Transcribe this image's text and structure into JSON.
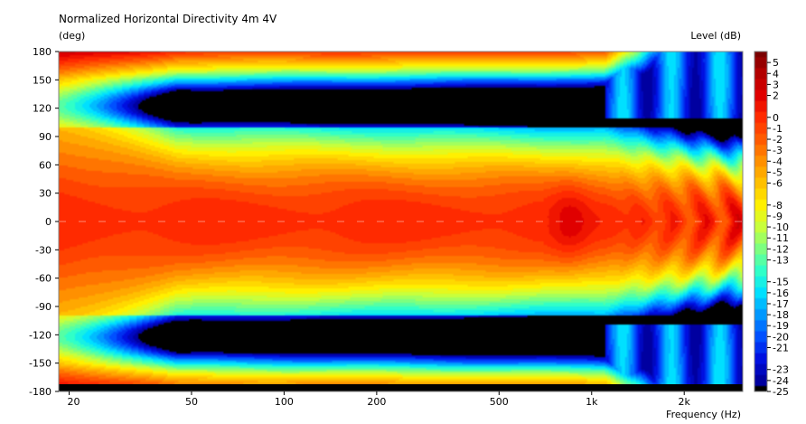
{
  "chart_data": {
    "type": "heatmap",
    "title": "Normalized Horizontal Directivity 4m 4V",
    "ylabel": "(deg)",
    "xlabel": "Frequency  (Hz)",
    "colorbar_label": "Level  (dB)",
    "x_scale": "log",
    "xlim": [
      18.5,
      3100
    ],
    "ylim": [
      -180,
      180
    ],
    "x_ticks": [
      {
        "value": 20,
        "label": "20"
      },
      {
        "value": 50,
        "label": "50"
      },
      {
        "value": 100,
        "label": "100"
      },
      {
        "value": 200,
        "label": "200"
      },
      {
        "value": 500,
        "label": "500"
      },
      {
        "value": 1000,
        "label": "1k"
      },
      {
        "value": 2000,
        "label": "2k"
      }
    ],
    "y_ticks": [
      180,
      150,
      120,
      90,
      60,
      30,
      0,
      -30,
      -60,
      -90,
      -120,
      -150,
      -180
    ],
    "colorbar": {
      "range": [
        -25,
        6
      ],
      "ticks": [
        5,
        4,
        3,
        2,
        0,
        -1,
        -2,
        -3,
        -4,
        -5,
        -6,
        -8,
        -9,
        -10,
        -11,
        -12,
        -13,
        -15,
        -16,
        -17,
        -18,
        -19,
        -20,
        -21,
        -23,
        -24,
        -25
      ],
      "colors": [
        {
          "level": 6,
          "color": "#7a0000"
        },
        {
          "level": 4,
          "color": "#b20000"
        },
        {
          "level": 2,
          "color": "#e00000"
        },
        {
          "level": 0,
          "color": "#ff2a00"
        },
        {
          "level": -2,
          "color": "#ff5a00"
        },
        {
          "level": -4,
          "color": "#ff9000"
        },
        {
          "level": -6,
          "color": "#ffc000"
        },
        {
          "level": -8,
          "color": "#fff000"
        },
        {
          "level": -10,
          "color": "#c8ff3c"
        },
        {
          "level": -12,
          "color": "#7cff80"
        },
        {
          "level": -14,
          "color": "#30ffc8"
        },
        {
          "level": -16,
          "color": "#00e0ff"
        },
        {
          "level": -18,
          "color": "#0098ff"
        },
        {
          "level": -20,
          "color": "#0050ff"
        },
        {
          "level": -22,
          "color": "#0010e0"
        },
        {
          "level": -24,
          "color": "#0000a0"
        },
        {
          "level": -25,
          "color": "#000000"
        }
      ]
    }
  }
}
